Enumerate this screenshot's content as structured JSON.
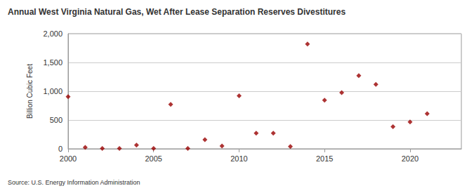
{
  "chart_data": {
    "type": "scatter",
    "title": "Annual West Virginia Natural Gas, Wet After Lease Separation Reserves Divestitures",
    "y_label": "Billion Cubic Feet",
    "source": "Source: U.S. Energy Information Administration",
    "x": [
      2000,
      2001,
      2002,
      2003,
      2004,
      2005,
      2006,
      2007,
      2008,
      2009,
      2010,
      2011,
      2012,
      2013,
      2014,
      2015,
      2016,
      2017,
      2018,
      2019,
      2020,
      2021
    ],
    "values": [
      905,
      25,
      5,
      5,
      65,
      5,
      770,
      5,
      160,
      50,
      920,
      270,
      270,
      40,
      1820,
      845,
      975,
      1270,
      1120,
      385,
      465,
      610
    ],
    "color": "#990000",
    "marker": "diamond",
    "xlim": [
      2000,
      2023
    ],
    "xticks": [
      2000,
      2005,
      2010,
      2015,
      2020
    ],
    "ylim": [
      0,
      2000
    ],
    "yticks": [
      0,
      500,
      {
        "value": 1000,
        "label": "1,000"
      },
      {
        "value": 1500,
        "label": "1,500"
      },
      {
        "value": 2000,
        "label": "2,000"
      }
    ],
    "grid": true
  }
}
